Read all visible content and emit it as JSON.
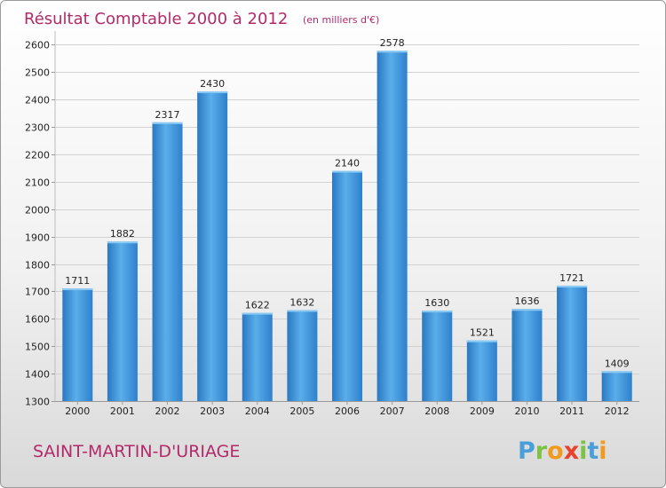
{
  "chart_data": {
    "type": "bar",
    "title": "Résultat Comptable 2000 à 2012",
    "subtitle": "(en milliers d'€)",
    "categories": [
      "2000",
      "2001",
      "2002",
      "2003",
      "2004",
      "2005",
      "2006",
      "2007",
      "2008",
      "2009",
      "2010",
      "2011",
      "2012"
    ],
    "values": [
      1711,
      1882,
      2317,
      2430,
      1622,
      1632,
      2140,
      2578,
      1630,
      1521,
      1636,
      1721,
      1409
    ],
    "yticks": [
      1300,
      1400,
      1500,
      1600,
      1700,
      1800,
      1900,
      2000,
      2100,
      2200,
      2300,
      2400,
      2500,
      2600
    ],
    "ylim": [
      1300,
      2650
    ],
    "xlabel": "",
    "ylabel": "",
    "grid": true,
    "bar_color": "#3d8fd6"
  },
  "commune": "SAINT-MARTIN-D'URIAGE",
  "logo": {
    "letters": [
      "P",
      "r",
      "o",
      "x",
      "i",
      "t",
      "i"
    ],
    "colors": [
      "#4a9fd8",
      "#7cc243",
      "#f29a1c",
      "#e8412c",
      "#7cc243",
      "#4a9fd8",
      "#f29a1c"
    ]
  }
}
